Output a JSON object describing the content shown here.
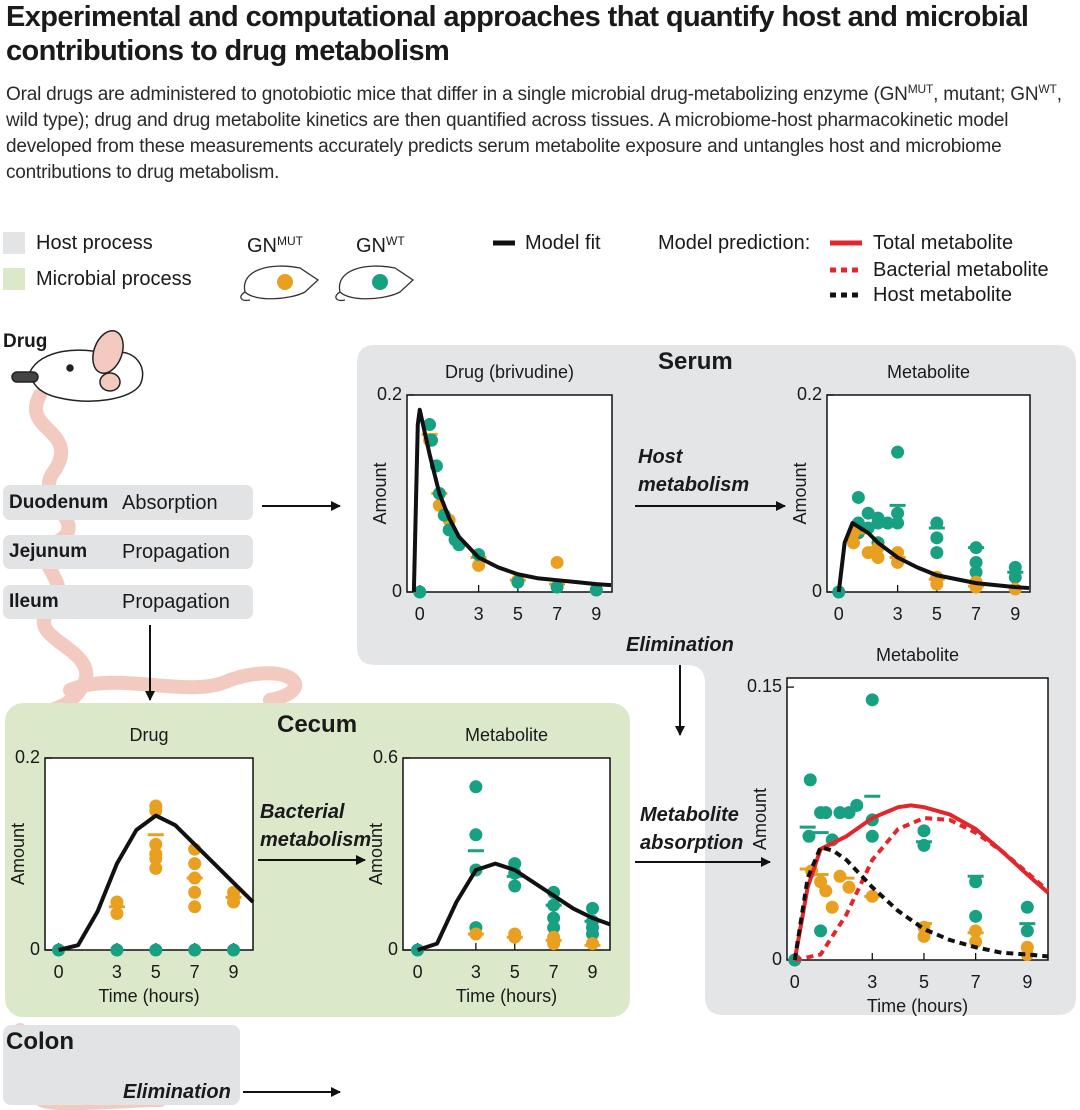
{
  "header": {
    "title": "Experimental and computational approaches that quantify host and microbial contributions to drug metabolism",
    "subtitle": [
      {
        "text": "Oral drugs are administered to gnotobiotic mice that differ in a single microbial drug-metabolizing enzyme (GN"
      },
      {
        "sup": "MUT"
      },
      {
        "text": ", mutant; GN"
      },
      {
        "sup": "WT"
      },
      {
        "text": ", wild type); drug and drug metabolite kinetics are then quantified across tissues. A microbiome-host pharmacokinetic model developed from these measurements accurately predicts serum metabolite exposure and untangles host and microbiome contributions to drug metabolism."
      }
    ]
  },
  "legend": {
    "host_process": {
      "label": "Host process",
      "color": "#e3e4e6"
    },
    "microbial_process": {
      "label": "Microbial process",
      "color": "#dce8ca"
    },
    "mice": [
      {
        "base": "GN",
        "sup": "MUT",
        "color": "#e99f1f"
      },
      {
        "base": "GN",
        "sup": "WT",
        "color": "#18a083"
      }
    ],
    "model_fit": {
      "label": "Model fit",
      "color": "#111111"
    },
    "prediction": {
      "label": "Model prediction:",
      "items": [
        {
          "label": "Total metabolite",
          "color": "#e3262c",
          "dash": false
        },
        {
          "label": "Bacterial metabolite",
          "color": "#e3262c",
          "dash": true
        },
        {
          "label": "Host metabolite",
          "color": "#111111",
          "dash": true
        }
      ]
    }
  },
  "diagram": {
    "drug": "Drug",
    "organs": [
      {
        "name": "Duodenum",
        "process": "Absorption"
      },
      {
        "name": "Jejunum",
        "process": "Propagation"
      },
      {
        "name": "Ileum",
        "process": "Propagation"
      }
    ],
    "serum": "Serum",
    "cecum": "Cecum",
    "colon": "Colon",
    "host_metabolism": "Host metabolism",
    "serum_elimination": "Elimination",
    "bacterial_metabolism": "Bacterial metabolism",
    "metabolite_absorption": "Metabolite absorption",
    "colon_elimination": "Elimination"
  },
  "chart_data": [
    {
      "type": "scatter",
      "title": "Drug (brivudine)",
      "ylabel": "Amount",
      "xlim": [
        -0.65,
        9.8
      ],
      "ylim": [
        0,
        0.2
      ],
      "xticks": [
        0,
        3,
        5,
        7,
        9
      ],
      "yticks": [
        0,
        0.2
      ],
      "series": [
        {
          "kind": "points",
          "color": "#e99f1f",
          "x": [
            0.5,
            1,
            1.5,
            3,
            5,
            7,
            9
          ],
          "y": [
            0.154,
            0.088,
            0.073,
            0.027,
            0.012,
            0.03,
            0.002
          ]
        },
        {
          "kind": "means",
          "color": "#e99f1f",
          "x": [
            0.5,
            1,
            3,
            5,
            7
          ],
          "y": [
            0.16,
            0.1,
            0.035,
            0.012,
            0.008
          ]
        },
        {
          "kind": "points",
          "color": "#18a083",
          "x": [
            0,
            0.5,
            0.6,
            0.85,
            1,
            1.25,
            1.5,
            1.8,
            2,
            3,
            5,
            7,
            9
          ],
          "y": [
            0,
            0.17,
            0.154,
            0.128,
            0.1,
            0.078,
            0.063,
            0.053,
            0.048,
            0.038,
            0.01,
            0.005,
            0.002
          ]
        },
        {
          "kind": "line",
          "color": "#111111",
          "dash": false,
          "x": [
            -0.3,
            -0.1,
            0,
            0.5,
            1,
            1.5,
            2,
            3,
            4,
            5,
            6,
            7,
            8,
            9,
            9.75
          ],
          "y": [
            0,
            0.17,
            0.185,
            0.14,
            0.1,
            0.075,
            0.056,
            0.035,
            0.025,
            0.018,
            0.014,
            0.012,
            0.01,
            0.008,
            0.007
          ]
        }
      ]
    },
    {
      "type": "scatter",
      "title": "Metabolite",
      "ylabel": "Amount",
      "xlim": [
        -0.6,
        9.75
      ],
      "ylim": [
        0,
        0.2
      ],
      "xticks": [
        0,
        3,
        5,
        7,
        9
      ],
      "yticks": [
        0,
        0.2
      ],
      "series": [
        {
          "kind": "points",
          "color": "#18a083",
          "x": [
            0,
            1,
            1,
            1,
            1.5,
            1.5,
            2,
            2,
            2,
            2.5,
            3,
            3,
            3,
            5,
            5,
            5,
            7,
            7,
            7,
            9,
            9
          ],
          "y": [
            0,
            0.096,
            0.07,
            0.06,
            0.08,
            0.065,
            0.07,
            0.075,
            0.05,
            0.07,
            0.142,
            0.08,
            0.07,
            0.07,
            0.055,
            0.04,
            0.045,
            0.03,
            0.02,
            0.025,
            0.015
          ]
        },
        {
          "kind": "points",
          "color": "#e99f1f",
          "x": [
            0.75,
            0.75,
            1.5,
            2,
            2,
            3,
            3,
            5,
            5,
            7,
            7,
            9
          ],
          "y": [
            0.06,
            0.05,
            0.04,
            0.045,
            0.035,
            0.04,
            0.03,
            0.015,
            0.008,
            0.01,
            0.005,
            0.003
          ]
        },
        {
          "kind": "means",
          "color": "#18a083",
          "x": [
            3,
            5,
            7,
            9
          ],
          "y": [
            0.088,
            0.065,
            0.045,
            0.02
          ]
        },
        {
          "kind": "means",
          "color": "#e99f1f",
          "x": [
            1,
            2,
            3,
            5,
            7
          ],
          "y": [
            0.06,
            0.045,
            0.035,
            0.013,
            0.006
          ]
        },
        {
          "kind": "line",
          "color": "#111111",
          "dash": false,
          "x": [
            0,
            0.3,
            0.7,
            1.5,
            2,
            3,
            4,
            5,
            7,
            9,
            9.7
          ],
          "y": [
            0,
            0.05,
            0.07,
            0.06,
            0.05,
            0.035,
            0.025,
            0.017,
            0.009,
            0.005,
            0.004
          ]
        }
      ]
    },
    {
      "type": "scatter",
      "title": "Drug",
      "ylabel": "Amount",
      "xlabel": "Time (hours)",
      "xlim": [
        -0.7,
        10
      ],
      "ylim": [
        0,
        0.2
      ],
      "xticks": [
        0,
        3,
        5,
        7,
        9
      ],
      "yticks": [
        0,
        0.2
      ],
      "series": [
        {
          "kind": "points",
          "color": "#e99f1f",
          "x": [
            3,
            3,
            5,
            5,
            5,
            5,
            5,
            5,
            7,
            7,
            7,
            7,
            7,
            9,
            9,
            9
          ],
          "y": [
            0.05,
            0.038,
            0.15,
            0.145,
            0.11,
            0.1,
            0.095,
            0.085,
            0.105,
            0.09,
            0.075,
            0.06,
            0.045,
            0.06,
            0.055,
            0.05
          ]
        },
        {
          "kind": "points",
          "color": "#18a083",
          "x": [
            0,
            3,
            5,
            7,
            9
          ],
          "y": [
            0,
            0,
            0,
            0,
            0
          ]
        },
        {
          "kind": "means",
          "color": "#e99f1f",
          "x": [
            3,
            5,
            7,
            9
          ],
          "y": [
            0.045,
            0.12,
            0.075,
            0.055
          ]
        },
        {
          "kind": "line",
          "color": "#111111",
          "dash": false,
          "x": [
            0,
            1,
            2,
            3,
            4,
            5,
            6,
            7,
            8,
            9,
            10
          ],
          "y": [
            0,
            0.005,
            0.04,
            0.09,
            0.125,
            0.14,
            0.13,
            0.11,
            0.09,
            0.07,
            0.05
          ]
        }
      ]
    },
    {
      "type": "scatter",
      "title": "Metabolite",
      "ylabel": "Amount",
      "xlabel": "Time (hours)",
      "xlim": [
        -0.75,
        9.9
      ],
      "ylim": [
        0,
        0.6
      ],
      "xticks": [
        0,
        3,
        5,
        7,
        9
      ],
      "yticks": [
        0,
        0.6
      ],
      "series": [
        {
          "kind": "points",
          "color": "#18a083",
          "x": [
            0,
            3,
            3,
            3,
            3,
            5,
            5,
            5,
            7,
            7,
            7,
            7,
            9,
            9,
            9,
            9
          ],
          "y": [
            0,
            0.51,
            0.36,
            0.25,
            0.07,
            0.27,
            0.24,
            0.2,
            0.18,
            0.14,
            0.1,
            0.07,
            0.13,
            0.09,
            0.07,
            0.05
          ]
        },
        {
          "kind": "points",
          "color": "#e99f1f",
          "x": [
            3,
            5,
            5,
            7,
            7,
            9
          ],
          "y": [
            0.05,
            0.05,
            0.04,
            0.04,
            0.02,
            0.02
          ]
        },
        {
          "kind": "means",
          "color": "#18a083",
          "x": [
            3,
            5,
            7,
            9
          ],
          "y": [
            0.31,
            0.23,
            0.14,
            0.09
          ]
        },
        {
          "kind": "means",
          "color": "#e99f1f",
          "x": [
            3,
            5,
            7,
            9
          ],
          "y": [
            0.05,
            0.04,
            0.03,
            0.015
          ]
        },
        {
          "kind": "line",
          "color": "#111111",
          "dash": false,
          "x": [
            0,
            1,
            2,
            3,
            4,
            5,
            6,
            7,
            8,
            9,
            9.9
          ],
          "y": [
            0,
            0.02,
            0.15,
            0.25,
            0.27,
            0.25,
            0.21,
            0.17,
            0.13,
            0.1,
            0.08
          ]
        }
      ]
    },
    {
      "type": "scatter",
      "title": "Metabolite",
      "ylabel": "Amount",
      "xlabel": "Time (hours)",
      "xlim": [
        -0.3,
        9.8
      ],
      "ylim": [
        0,
        0.155
      ],
      "xticks": [
        0,
        3,
        5,
        7,
        9
      ],
      "yticks": [
        0,
        0.15
      ],
      "series": [
        {
          "kind": "points",
          "color": "#18a083",
          "x": [
            0,
            0.6,
            0.55,
            1,
            1,
            1.2,
            1.45,
            1.75,
            2.1,
            2.4,
            3,
            3,
            3,
            5,
            5,
            7,
            7,
            9,
            9
          ],
          "y": [
            0,
            0.099,
            0.068,
            0.081,
            0.016,
            0.081,
            0.066,
            0.081,
            0.081,
            0.085,
            0.143,
            0.077,
            0.068,
            0.063,
            0.071,
            0.043,
            0.024,
            0.029,
            0.016
          ]
        },
        {
          "kind": "points",
          "color": "#e99f1f",
          "x": [
            0.65,
            1,
            1.2,
            1.45,
            1.75,
            2.1,
            3,
            5,
            5,
            7,
            7,
            9,
            9
          ],
          "y": [
            0.049,
            0.043,
            0.038,
            0.029,
            0.046,
            0.04,
            0.035,
            0.018,
            0.013,
            0.016,
            0.01,
            0.007,
            0.003
          ]
        },
        {
          "kind": "means",
          "color": "#18a083",
          "x": [
            0.5,
            1,
            2,
            3,
            5,
            7,
            9
          ],
          "y": [
            0.073,
            0.07,
            0.08,
            0.09,
            0.065,
            0.046,
            0.02
          ]
        },
        {
          "kind": "means",
          "color": "#e99f1f",
          "x": [
            0.5,
            1,
            2,
            3,
            5,
            7,
            9
          ],
          "y": [
            0.05,
            0.047,
            0.045,
            0.035,
            0.02,
            0.015,
            0.003
          ]
        },
        {
          "kind": "line",
          "color": "#e3262c",
          "dash": false,
          "x": [
            0,
            0.5,
            1,
            2,
            3,
            4,
            4.5,
            5,
            6,
            7,
            8,
            9,
            9.8
          ],
          "y": [
            0,
            0.04,
            0.061,
            0.068,
            0.078,
            0.084,
            0.085,
            0.084,
            0.08,
            0.072,
            0.06,
            0.047,
            0.037
          ]
        },
        {
          "kind": "line",
          "color": "#e3262c",
          "dash": true,
          "x": [
            0,
            1,
            2,
            3,
            4,
            5,
            6,
            7,
            8,
            9,
            9.8
          ],
          "y": [
            0,
            0.003,
            0.025,
            0.055,
            0.072,
            0.078,
            0.077,
            0.07,
            0.06,
            0.048,
            0.038
          ]
        },
        {
          "kind": "line",
          "color": "#111111",
          "dash": true,
          "x": [
            0,
            0.5,
            1,
            1.5,
            2,
            3,
            4,
            5,
            6,
            7,
            8,
            9,
            9.8
          ],
          "y": [
            0,
            0.045,
            0.062,
            0.06,
            0.055,
            0.04,
            0.027,
            0.017,
            0.011,
            0.007,
            0.004,
            0.003,
            0.002
          ]
        }
      ]
    }
  ]
}
